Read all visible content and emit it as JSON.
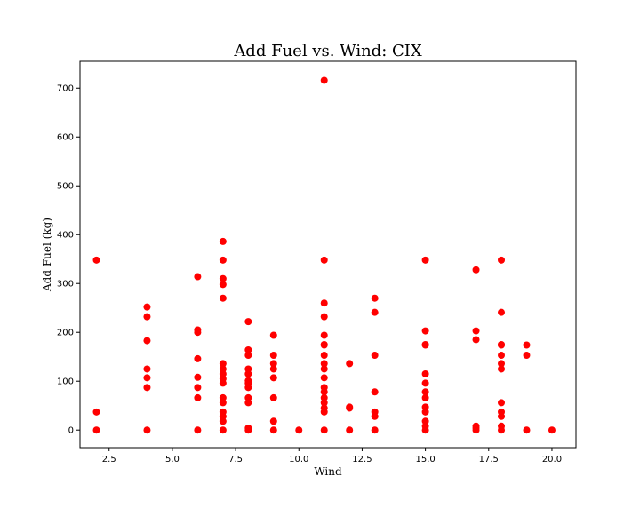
{
  "chart_data": {
    "type": "scatter",
    "title": "Add Fuel vs. Wind: CIX",
    "xlabel": "Wind",
    "ylabel": "Add Fuel (kg)",
    "xlim": [
      1.35,
      20.95
    ],
    "ylim": [
      -36,
      755
    ],
    "x_ticks": [
      {
        "value": 2.5,
        "label": "2.5"
      },
      {
        "value": 5.0,
        "label": "5.0"
      },
      {
        "value": 7.5,
        "label": "7.5"
      },
      {
        "value": 10.0,
        "label": "10.0"
      },
      {
        "value": 12.5,
        "label": "12.5"
      },
      {
        "value": 15.0,
        "label": "15.0"
      },
      {
        "value": 17.5,
        "label": "17.5"
      },
      {
        "value": 20.0,
        "label": "20.0"
      }
    ],
    "y_ticks": [
      {
        "value": 0,
        "label": "0"
      },
      {
        "value": 100,
        "label": "100"
      },
      {
        "value": 200,
        "label": "200"
      },
      {
        "value": 300,
        "label": "300"
      },
      {
        "value": 400,
        "label": "400"
      },
      {
        "value": 500,
        "label": "500"
      },
      {
        "value": 600,
        "label": "600"
      },
      {
        "value": 700,
        "label": "700"
      }
    ],
    "grid": false,
    "legend": "none",
    "marker_color": "#ff0000",
    "points": [
      {
        "x": 2,
        "y": 348
      },
      {
        "x": 2,
        "y": 37
      },
      {
        "x": 2,
        "y": 0
      },
      {
        "x": 4,
        "y": 252
      },
      {
        "x": 4,
        "y": 232
      },
      {
        "x": 4,
        "y": 183
      },
      {
        "x": 4,
        "y": 125
      },
      {
        "x": 4,
        "y": 107
      },
      {
        "x": 4,
        "y": 87
      },
      {
        "x": 4,
        "y": 0
      },
      {
        "x": 6,
        "y": 314
      },
      {
        "x": 6,
        "y": 205
      },
      {
        "x": 6,
        "y": 200
      },
      {
        "x": 6,
        "y": 146
      },
      {
        "x": 6,
        "y": 108
      },
      {
        "x": 6,
        "y": 87
      },
      {
        "x": 6,
        "y": 66
      },
      {
        "x": 6,
        "y": 0
      },
      {
        "x": 7,
        "y": 386
      },
      {
        "x": 7,
        "y": 348
      },
      {
        "x": 7,
        "y": 310
      },
      {
        "x": 7,
        "y": 298
      },
      {
        "x": 7,
        "y": 270
      },
      {
        "x": 7,
        "y": 136
      },
      {
        "x": 7,
        "y": 125
      },
      {
        "x": 7,
        "y": 115
      },
      {
        "x": 7,
        "y": 105
      },
      {
        "x": 7,
        "y": 96
      },
      {
        "x": 7,
        "y": 66
      },
      {
        "x": 7,
        "y": 56
      },
      {
        "x": 7,
        "y": 37
      },
      {
        "x": 7,
        "y": 28
      },
      {
        "x": 7,
        "y": 18
      },
      {
        "x": 7,
        "y": 0
      },
      {
        "x": 8,
        "y": 222
      },
      {
        "x": 8,
        "y": 164
      },
      {
        "x": 8,
        "y": 153
      },
      {
        "x": 8,
        "y": 125
      },
      {
        "x": 8,
        "y": 115
      },
      {
        "x": 8,
        "y": 101
      },
      {
        "x": 8,
        "y": 96
      },
      {
        "x": 8,
        "y": 87
      },
      {
        "x": 8,
        "y": 66
      },
      {
        "x": 8,
        "y": 56
      },
      {
        "x": 8,
        "y": 4
      },
      {
        "x": 8,
        "y": 0
      },
      {
        "x": 9,
        "y": 194
      },
      {
        "x": 9,
        "y": 153
      },
      {
        "x": 9,
        "y": 136
      },
      {
        "x": 9,
        "y": 125
      },
      {
        "x": 9,
        "y": 107
      },
      {
        "x": 9,
        "y": 66
      },
      {
        "x": 9,
        "y": 18
      },
      {
        "x": 9,
        "y": 0
      },
      {
        "x": 10,
        "y": 0
      },
      {
        "x": 11,
        "y": 716
      },
      {
        "x": 11,
        "y": 348
      },
      {
        "x": 11,
        "y": 260
      },
      {
        "x": 11,
        "y": 232
      },
      {
        "x": 11,
        "y": 194
      },
      {
        "x": 11,
        "y": 175
      },
      {
        "x": 11,
        "y": 174
      },
      {
        "x": 11,
        "y": 153
      },
      {
        "x": 11,
        "y": 136
      },
      {
        "x": 11,
        "y": 125
      },
      {
        "x": 11,
        "y": 107
      },
      {
        "x": 11,
        "y": 87
      },
      {
        "x": 11,
        "y": 78
      },
      {
        "x": 11,
        "y": 66
      },
      {
        "x": 11,
        "y": 56
      },
      {
        "x": 11,
        "y": 45
      },
      {
        "x": 11,
        "y": 37
      },
      {
        "x": 11,
        "y": 0
      },
      {
        "x": 12,
        "y": 136
      },
      {
        "x": 12,
        "y": 47
      },
      {
        "x": 12,
        "y": 45
      },
      {
        "x": 12,
        "y": 0
      },
      {
        "x": 13,
        "y": 270
      },
      {
        "x": 13,
        "y": 241
      },
      {
        "x": 13,
        "y": 153
      },
      {
        "x": 13,
        "y": 78
      },
      {
        "x": 13,
        "y": 37
      },
      {
        "x": 13,
        "y": 28
      },
      {
        "x": 13,
        "y": 0
      },
      {
        "x": 15,
        "y": 348
      },
      {
        "x": 15,
        "y": 203
      },
      {
        "x": 15,
        "y": 175
      },
      {
        "x": 15,
        "y": 174
      },
      {
        "x": 15,
        "y": 115
      },
      {
        "x": 15,
        "y": 96
      },
      {
        "x": 15,
        "y": 78
      },
      {
        "x": 15,
        "y": 66
      },
      {
        "x": 15,
        "y": 47
      },
      {
        "x": 15,
        "y": 37
      },
      {
        "x": 15,
        "y": 18
      },
      {
        "x": 15,
        "y": 8
      },
      {
        "x": 15,
        "y": 0
      },
      {
        "x": 17,
        "y": 328
      },
      {
        "x": 17,
        "y": 203
      },
      {
        "x": 17,
        "y": 185
      },
      {
        "x": 17,
        "y": 8
      },
      {
        "x": 17,
        "y": 4
      },
      {
        "x": 17,
        "y": 0
      },
      {
        "x": 18,
        "y": 348
      },
      {
        "x": 18,
        "y": 241
      },
      {
        "x": 18,
        "y": 175
      },
      {
        "x": 18,
        "y": 174
      },
      {
        "x": 18,
        "y": 153
      },
      {
        "x": 18,
        "y": 136
      },
      {
        "x": 18,
        "y": 125
      },
      {
        "x": 18,
        "y": 56
      },
      {
        "x": 18,
        "y": 37
      },
      {
        "x": 18,
        "y": 28
      },
      {
        "x": 18,
        "y": 8
      },
      {
        "x": 18,
        "y": 0
      },
      {
        "x": 19,
        "y": 174
      },
      {
        "x": 19,
        "y": 153
      },
      {
        "x": 19,
        "y": 0
      },
      {
        "x": 20,
        "y": 0
      }
    ]
  }
}
